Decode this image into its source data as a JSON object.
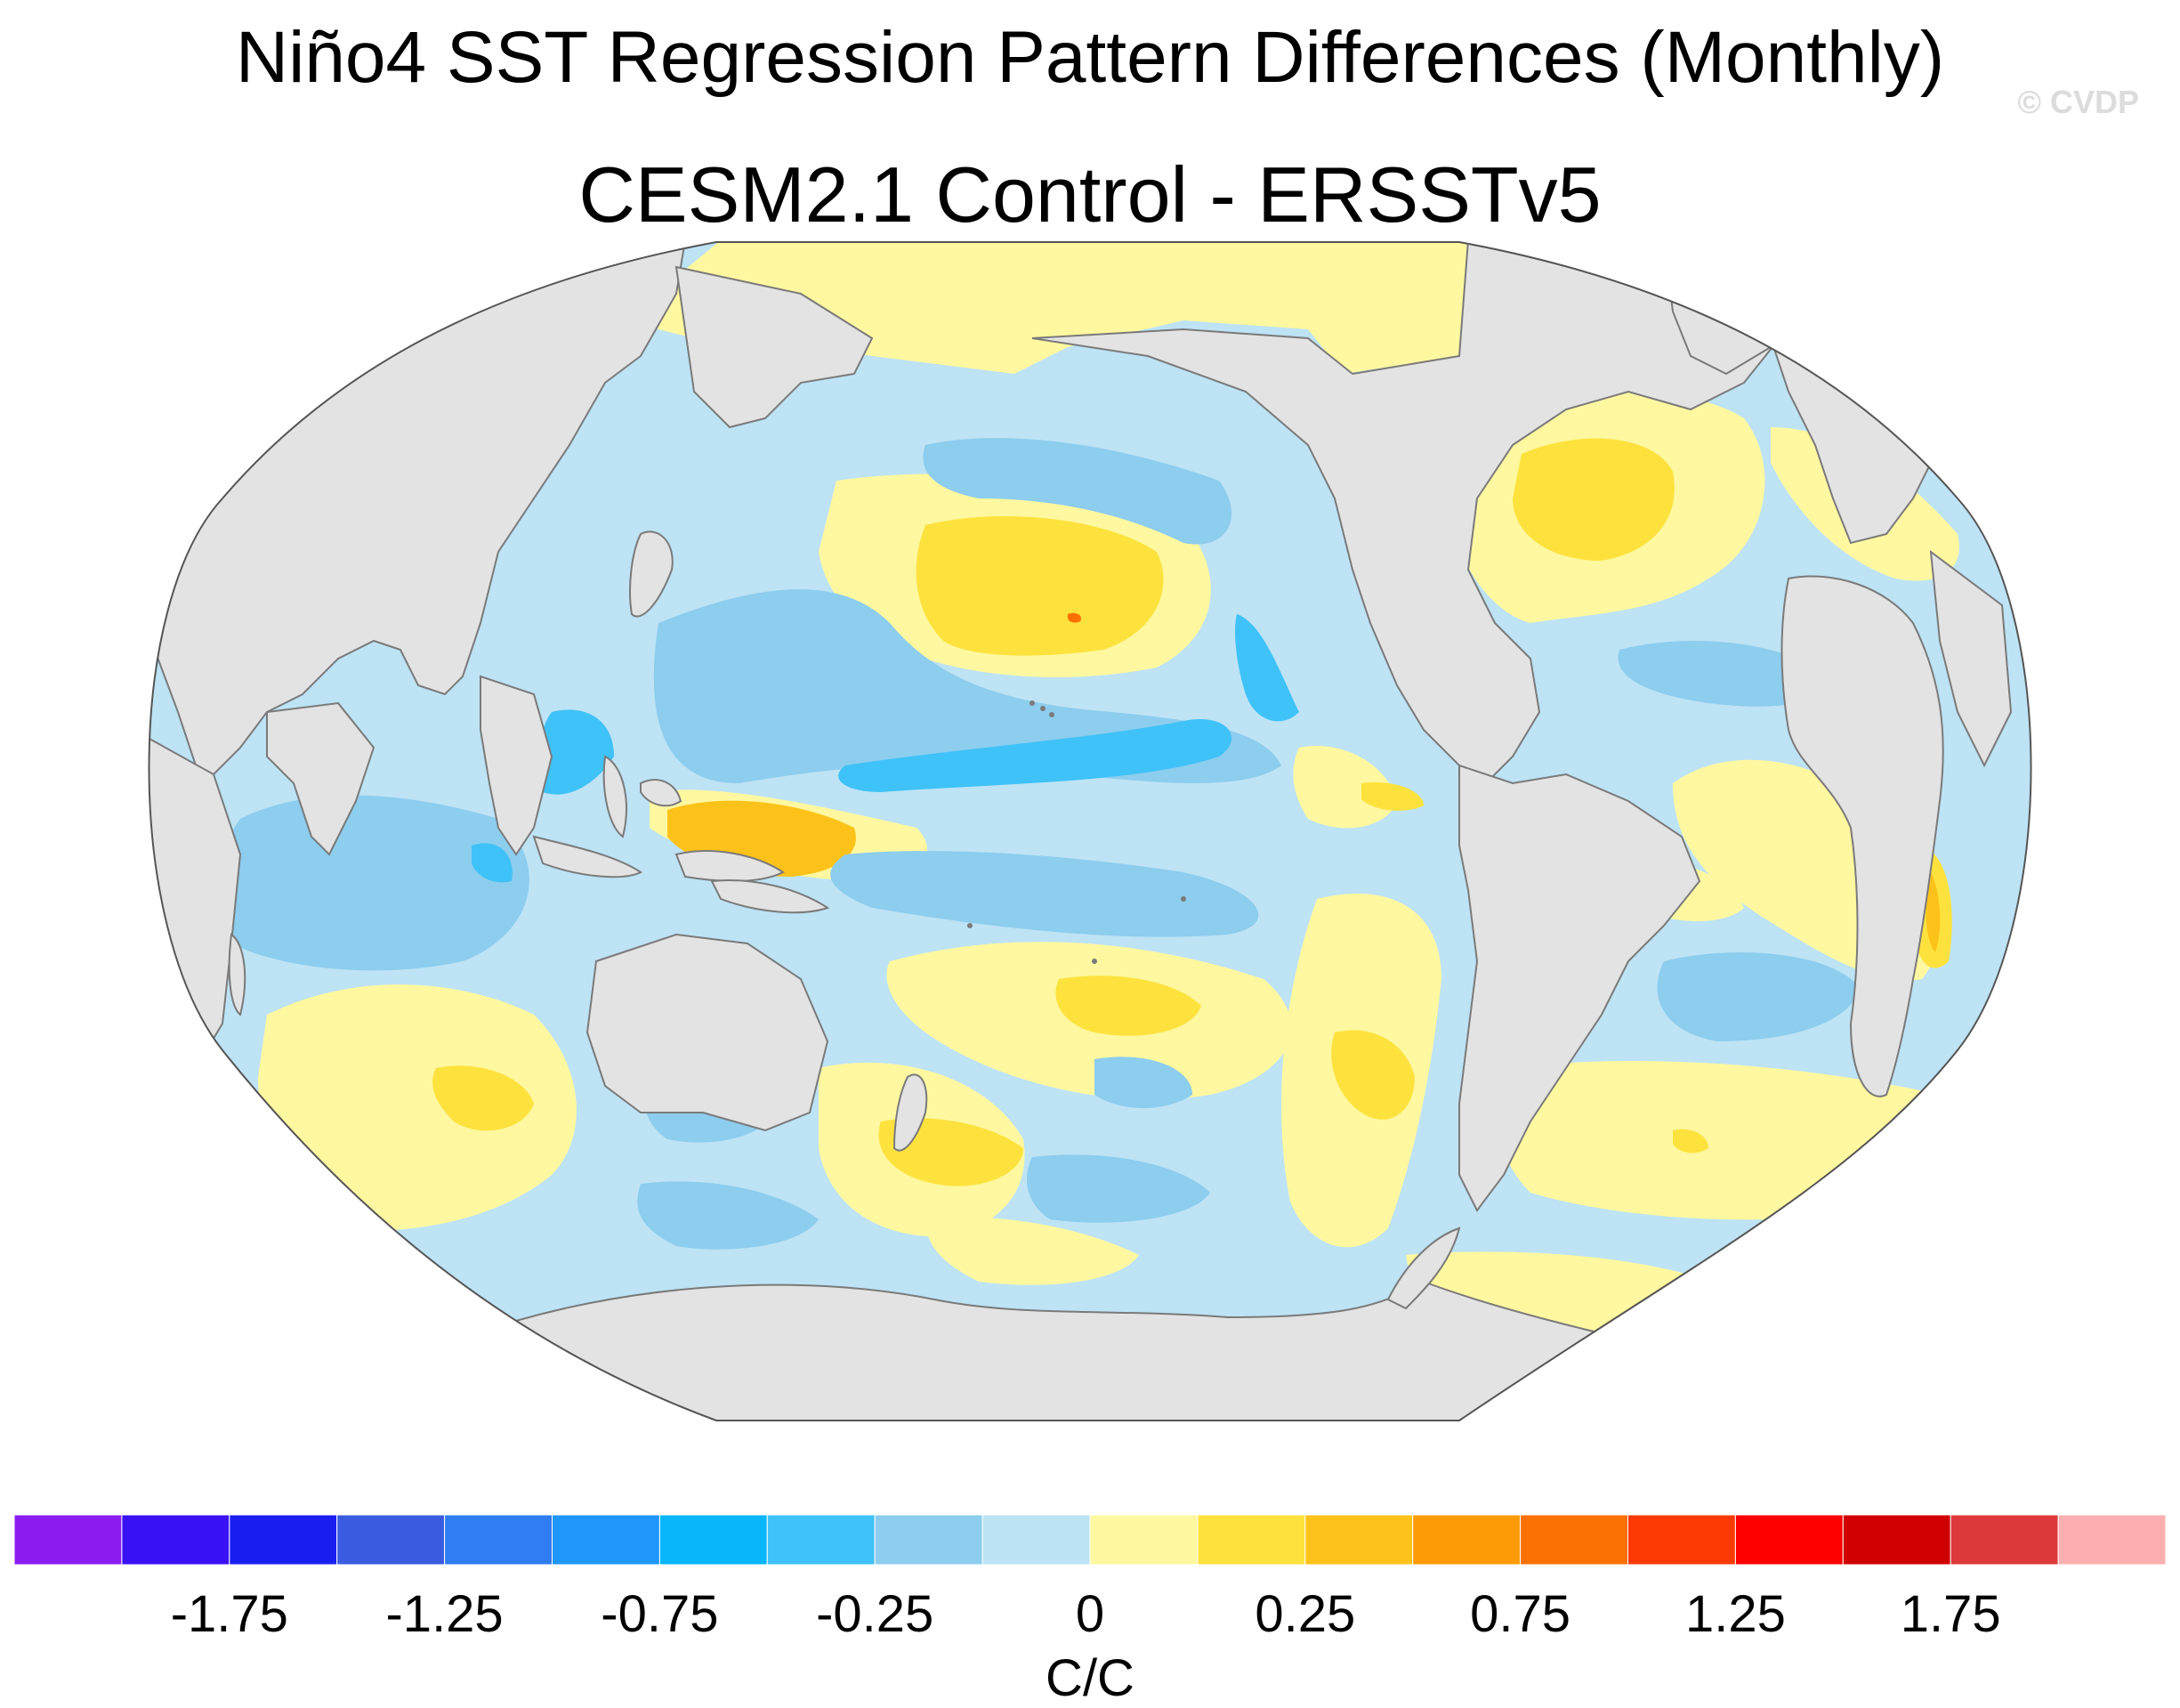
{
  "title": "Niño4 SST Regression Pattern Differences (Monthly)",
  "subtitle": "CESM2.1 Control - ERSSTv5",
  "watermark": "© CVDP",
  "colorbar": {
    "colors": [
      "#8b1cf0",
      "#3a10f5",
      "#1a1ef0",
      "#3a5ce0",
      "#2f7df0",
      "#1e96fa",
      "#0ab6fa",
      "#3fc2f7",
      "#8dcdee",
      "#bde3f5",
      "#fff8a0",
      "#fde23e",
      "#fdc21a",
      "#fc9b05",
      "#fd7102",
      "#fe3a04",
      "#fe0000",
      "#d10000",
      "#dc3a3a",
      "#fcafaf"
    ],
    "tick_labels": [
      "-1.75",
      "-1.25",
      "-0.75",
      "-0.25",
      "0",
      "0.25",
      "0.75",
      "1.25",
      "1.75"
    ],
    "units": "C/C"
  },
  "map": {
    "projection": "Robinson-like (Pacific-centered)",
    "land_color": "#e3e3e3",
    "ocean_neutral_color": "#bde3f5"
  }
}
